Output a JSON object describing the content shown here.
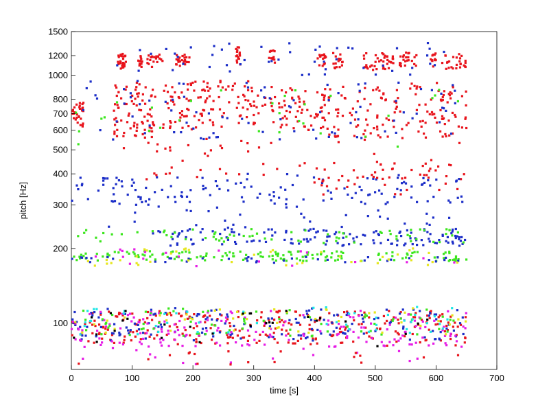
{
  "chart_data": {
    "type": "scatter",
    "title": "",
    "xlabel": "time [s]",
    "ylabel": "pitch [Hz]",
    "xlim": [
      0,
      700
    ],
    "ylim": [
      65,
      1500
    ],
    "y_scale": "log",
    "x_ticks": [
      0,
      100,
      200,
      300,
      400,
      500,
      600,
      700
    ],
    "x_tick_labels": [
      "0",
      "100",
      "200",
      "300",
      "400",
      "500",
      "600",
      "700"
    ],
    "y_ticks": [
      100,
      200,
      300,
      400,
      500,
      600,
      700,
      800,
      1000,
      1200,
      1500
    ],
    "y_tick_labels": [
      "100",
      "200",
      "300",
      "400",
      "500",
      "600",
      "700",
      "800",
      "1000",
      "1200",
      "1500"
    ],
    "grid": false,
    "colors": {
      "red": "#e8141c",
      "blue": "#1c2ec8",
      "green": "#3ce61e",
      "yellow": "#e6e61c",
      "magenta": "#e61ce6",
      "cyan": "#1ce6e6",
      "black": "#000000"
    },
    "clusters": [
      {
        "color": "red",
        "x": [
          75,
          90
        ],
        "y": [
          1060,
          1220
        ],
        "n": 30
      },
      {
        "color": "red",
        "x": [
          110,
          118
        ],
        "y": [
          1080,
          1200
        ],
        "n": 12
      },
      {
        "color": "red",
        "x": [
          125,
          150
        ],
        "y": [
          1080,
          1210
        ],
        "n": 20
      },
      {
        "color": "red",
        "x": [
          170,
          195
        ],
        "y": [
          1090,
          1220
        ],
        "n": 24
      },
      {
        "color": "red",
        "x": [
          270,
          280
        ],
        "y": [
          1100,
          1300
        ],
        "n": 16
      },
      {
        "color": "red",
        "x": [
          325,
          335
        ],
        "y": [
          1120,
          1260
        ],
        "n": 12
      },
      {
        "color": "red",
        "x": [
          405,
          420
        ],
        "y": [
          1080,
          1220
        ],
        "n": 16
      },
      {
        "color": "red",
        "x": [
          430,
          450
        ],
        "y": [
          1060,
          1230
        ],
        "n": 16
      },
      {
        "color": "red",
        "x": [
          480,
          530
        ],
        "y": [
          1050,
          1230
        ],
        "n": 40
      },
      {
        "color": "red",
        "x": [
          540,
          570
        ],
        "y": [
          1080,
          1240
        ],
        "n": 22
      },
      {
        "color": "red",
        "x": [
          590,
          600
        ],
        "y": [
          1080,
          1230
        ],
        "n": 12
      },
      {
        "color": "red",
        "x": [
          610,
          650
        ],
        "y": [
          1060,
          1230
        ],
        "n": 26
      },
      {
        "color": "blue",
        "x": [
          70,
          650
        ],
        "y": [
          1000,
          1350
        ],
        "n": 50
      },
      {
        "color": "red",
        "x": [
          0,
          20
        ],
        "y": [
          620,
          780
        ],
        "n": 30
      },
      {
        "color": "red",
        "x": [
          70,
          140
        ],
        "y": [
          560,
          950
        ],
        "n": 80
      },
      {
        "color": "red",
        "x": [
          150,
          220
        ],
        "y": [
          600,
          960
        ],
        "n": 60
      },
      {
        "color": "red",
        "x": [
          220,
          340
        ],
        "y": [
          620,
          960
        ],
        "n": 70
      },
      {
        "color": "red",
        "x": [
          340,
          420
        ],
        "y": [
          600,
          900
        ],
        "n": 60
      },
      {
        "color": "red",
        "x": [
          420,
          520
        ],
        "y": [
          560,
          900
        ],
        "n": 60
      },
      {
        "color": "red",
        "x": [
          520,
          650
        ],
        "y": [
          560,
          950
        ],
        "n": 80
      },
      {
        "color": "red",
        "x": [
          60,
          650
        ],
        "y": [
          380,
          560
        ],
        "n": 60
      },
      {
        "color": "blue",
        "x": [
          0,
          650
        ],
        "y": [
          550,
          950
        ],
        "n": 90
      },
      {
        "color": "green",
        "x": [
          0,
          650
        ],
        "y": [
          500,
          900
        ],
        "n": 30
      },
      {
        "color": "blue",
        "x": [
          0,
          650
        ],
        "y": [
          300,
          400
        ],
        "n": 120
      },
      {
        "color": "red",
        "x": [
          400,
          650
        ],
        "y": [
          330,
          420
        ],
        "n": 40
      },
      {
        "color": "blue",
        "x": [
          60,
          650
        ],
        "y": [
          240,
          330
        ],
        "n": 50
      },
      {
        "color": "blue",
        "x": [
          130,
          650
        ],
        "y": [
          205,
          240
        ],
        "n": 140
      },
      {
        "color": "green",
        "x": [
          0,
          650
        ],
        "y": [
          210,
          240
        ],
        "n": 70
      },
      {
        "color": "green",
        "x": [
          0,
          650
        ],
        "y": [
          178,
          195
        ],
        "n": 150
      },
      {
        "color": "blue",
        "x": [
          0,
          650
        ],
        "y": [
          175,
          185
        ],
        "n": 40
      },
      {
        "color": "yellow",
        "x": [
          0,
          650
        ],
        "y": [
          170,
          200
        ],
        "n": 40
      },
      {
        "color": "magenta",
        "x": [
          0,
          650
        ],
        "y": [
          165,
          200
        ],
        "n": 20
      },
      {
        "color": "red",
        "x": [
          0,
          650
        ],
        "y": [
          82,
          112
        ],
        "n": 260
      },
      {
        "color": "blue",
        "x": [
          0,
          650
        ],
        "y": [
          85,
          115
        ],
        "n": 160
      },
      {
        "color": "magenta",
        "x": [
          0,
          650
        ],
        "y": [
          80,
          112
        ],
        "n": 170
      },
      {
        "color": "green",
        "x": [
          0,
          650
        ],
        "y": [
          88,
          115
        ],
        "n": 70
      },
      {
        "color": "yellow",
        "x": [
          0,
          650
        ],
        "y": [
          90,
          115
        ],
        "n": 50
      },
      {
        "color": "cyan",
        "x": [
          0,
          650
        ],
        "y": [
          90,
          118
        ],
        "n": 50
      },
      {
        "color": "black",
        "x": [
          0,
          650
        ],
        "y": [
          80,
          112
        ],
        "n": 30
      },
      {
        "color": "magenta",
        "x": [
          0,
          650
        ],
        "y": [
          68,
          82
        ],
        "n": 20
      },
      {
        "color": "red",
        "x": [
          0,
          650
        ],
        "y": [
          68,
          82
        ],
        "n": 20
      }
    ]
  }
}
